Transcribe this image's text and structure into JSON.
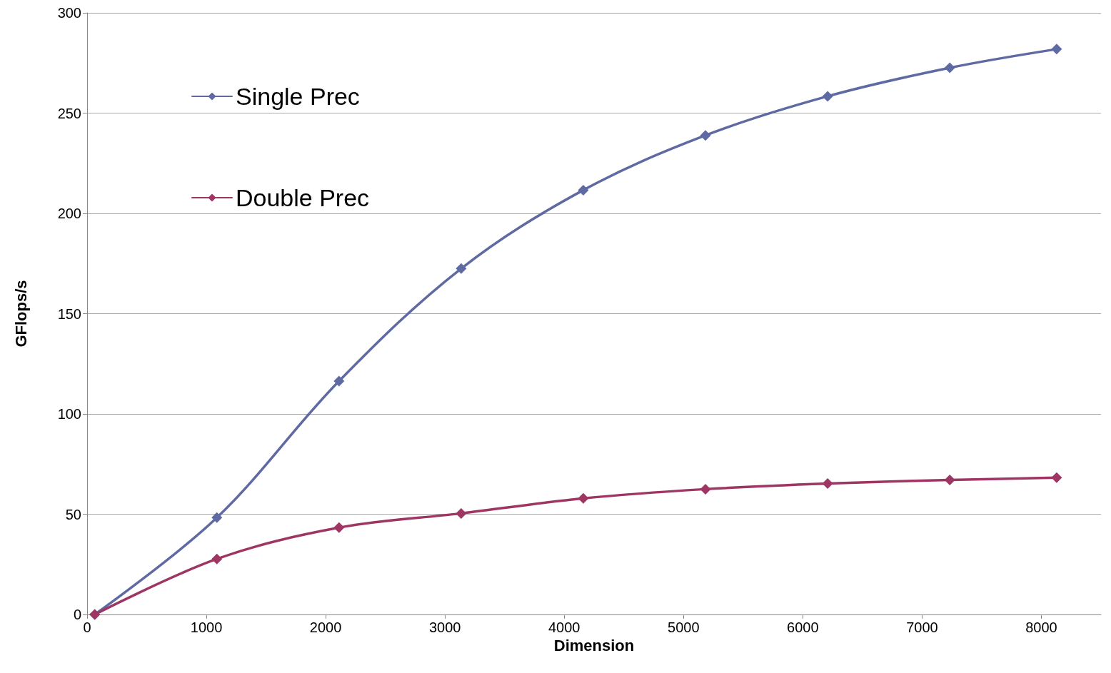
{
  "chart_data": {
    "type": "line",
    "xlabel": "Dimension",
    "ylabel": "GFlops/s",
    "x": [
      64,
      1088,
      2112,
      3136,
      4160,
      5184,
      6208,
      7232,
      8128
    ],
    "series": [
      {
        "name": "Single Prec",
        "color": "#5f6aa3",
        "values": [
          0,
          48.3,
          116.4,
          172.5,
          211.6,
          238.9,
          258.4,
          272.6,
          281.9
        ]
      },
      {
        "name": "Double Prec",
        "color": "#9e3563",
        "values": [
          0,
          27.7,
          43.3,
          50.4,
          57.9,
          62.5,
          65.3,
          67.1,
          68.2
        ]
      }
    ],
    "xlim": [
      0,
      8500
    ],
    "xticks": [
      0,
      1000,
      2000,
      3000,
      4000,
      5000,
      6000,
      7000,
      8000
    ],
    "ylim": [
      0,
      300
    ],
    "yticks": [
      0,
      50,
      100,
      150,
      200,
      250,
      300
    ],
    "grid": "y",
    "legend": "top left",
    "marker": "diamond",
    "line_style": "solid"
  }
}
